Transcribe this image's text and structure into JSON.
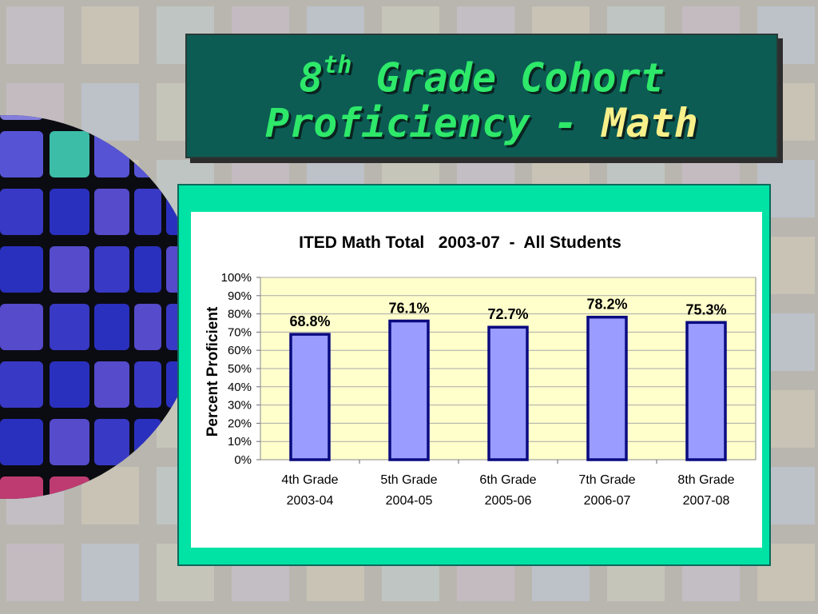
{
  "slide": {
    "title_sup": "th",
    "title_line1_prefix": "8",
    "title_line1_rest": " Grade Cohort",
    "title_line2_prefix": "Proficiency - ",
    "title_line2_accent": "Math",
    "colors": {
      "title_bg": "#0c5c54",
      "title_text": "#2ee86a",
      "title_accent": "#f8f08a",
      "chart_border": "#00e3a5"
    }
  },
  "chart_data": {
    "type": "bar",
    "title": "ITED Math Total   2003-07  -  All Students",
    "ylabel": "Percent Proficient",
    "xlabel": "",
    "categories": [
      [
        "4th Grade",
        "2003-04"
      ],
      [
        "5th Grade",
        "2004-05"
      ],
      [
        "6th Grade",
        "2005-06"
      ],
      [
        "7th Grade",
        "2006-07"
      ],
      [
        "8th Grade",
        "2007-08"
      ]
    ],
    "values": [
      68.8,
      76.1,
      72.7,
      78.2,
      75.3
    ],
    "data_labels": [
      "68.8%",
      "76.1%",
      "72.7%",
      "78.2%",
      "75.3%"
    ],
    "ylim": [
      0,
      100
    ],
    "yticks": [
      0,
      10,
      20,
      30,
      40,
      50,
      60,
      70,
      80,
      90,
      100
    ],
    "ytick_labels": [
      "0%",
      "10%",
      "20%",
      "30%",
      "40%",
      "50%",
      "60%",
      "70%",
      "80%",
      "90%",
      "100%"
    ],
    "grid": true,
    "legend": "none",
    "colors": {
      "bar_fill": "#9a9cff",
      "bar_edge": "#0a0a80",
      "plot_bg": "#ffffcc",
      "grid": "#a9a9a9"
    }
  }
}
